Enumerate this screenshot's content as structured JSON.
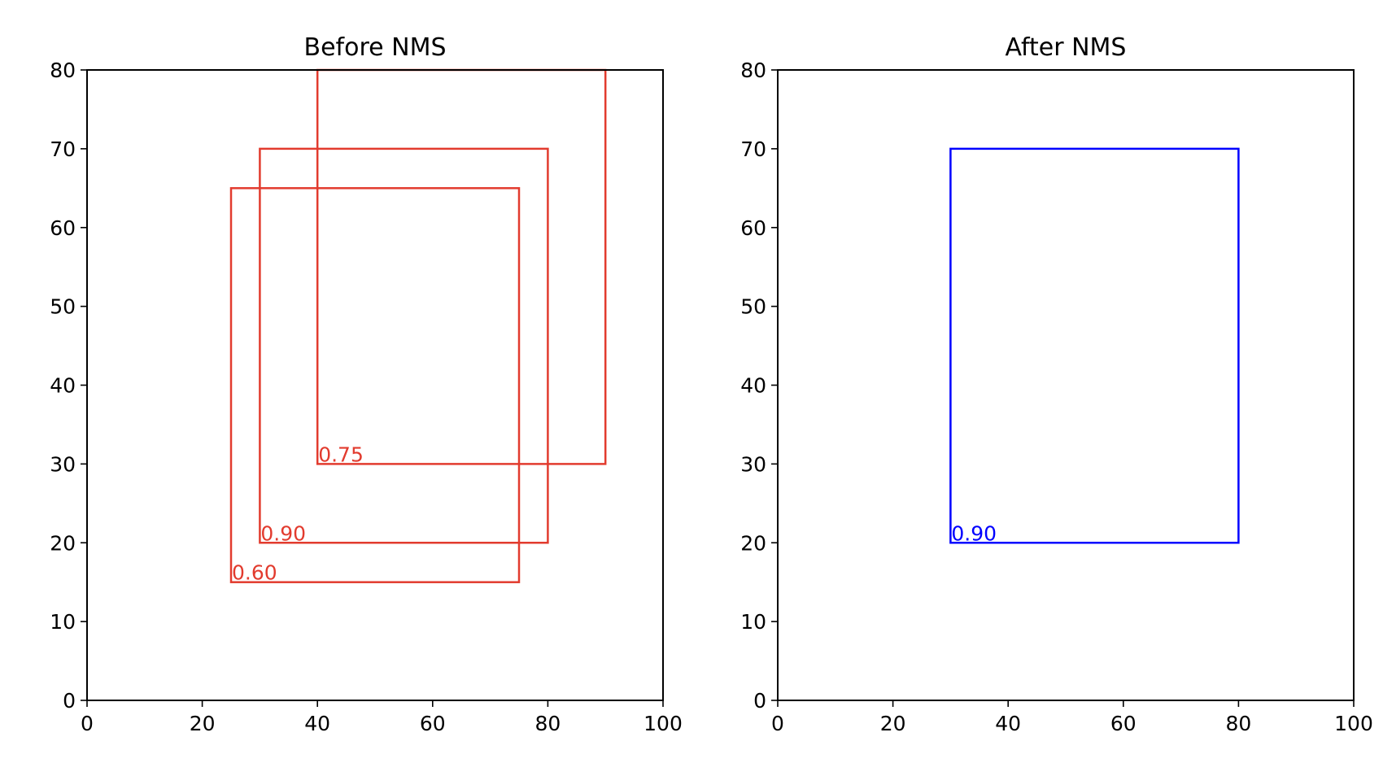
{
  "chart_data": [
    {
      "type": "boxes",
      "title": "Before NMS",
      "xlabel": "",
      "ylabel": "",
      "xlim": [
        0,
        100
      ],
      "ylim": [
        0,
        80
      ],
      "xticks": [
        "0",
        "20",
        "40",
        "60",
        "80",
        "100"
      ],
      "yticks": [
        "0",
        "10",
        "20",
        "30",
        "40",
        "50",
        "60",
        "70",
        "80"
      ],
      "grid": false,
      "color": "#e23b2e",
      "boxes": [
        {
          "x1": 40,
          "y1": 30,
          "x2": 90,
          "y2": 80,
          "score": "0.75"
        },
        {
          "x1": 30,
          "y1": 20,
          "x2": 80,
          "y2": 70,
          "score": "0.90"
        },
        {
          "x1": 25,
          "y1": 15,
          "x2": 75,
          "y2": 65,
          "score": "0.60"
        }
      ]
    },
    {
      "type": "boxes",
      "title": "After NMS",
      "xlabel": "",
      "ylabel": "",
      "xlim": [
        0,
        100
      ],
      "ylim": [
        0,
        80
      ],
      "xticks": [
        "0",
        "20",
        "40",
        "60",
        "80",
        "100"
      ],
      "yticks": [
        "0",
        "10",
        "20",
        "30",
        "40",
        "50",
        "60",
        "70",
        "80"
      ],
      "grid": false,
      "color": "#0000ff",
      "boxes": [
        {
          "x1": 30,
          "y1": 20,
          "x2": 80,
          "y2": 70,
          "score": "0.90"
        }
      ]
    }
  ]
}
